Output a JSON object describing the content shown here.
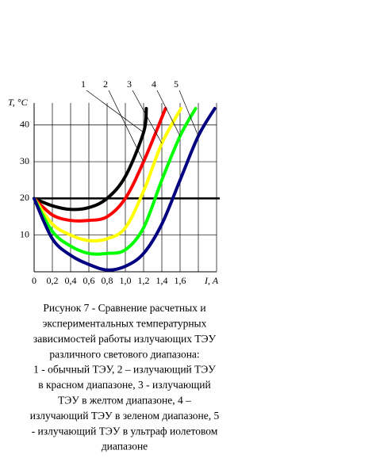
{
  "chart_data": {
    "type": "line",
    "y_label": "T, °C",
    "x_label": "I, A",
    "xlim": [
      0,
      2.0
    ],
    "ylim": [
      0,
      46
    ],
    "xticks": [
      0,
      {
        "value": 0.2,
        "label": "0,2"
      },
      {
        "value": 0.4,
        "label": "0,4"
      },
      {
        "value": 0.6,
        "label": "0,6"
      },
      {
        "value": 0.8,
        "label": "0,8"
      },
      {
        "value": 1.0,
        "label": "1,0"
      },
      {
        "value": 1.2,
        "label": "1,2"
      },
      {
        "value": 1.4,
        "label": "1,4"
      },
      {
        "value": 1.6,
        "label": "1,6"
      }
    ],
    "yticks": [
      10,
      20,
      30,
      40
    ],
    "grid": true,
    "reference_line": 20,
    "series": [
      {
        "name": "1",
        "color": "#000000",
        "x": [
          0,
          0.2,
          0.4,
          0.6,
          0.8,
          1.0,
          1.2,
          1.23
        ],
        "values": [
          20,
          18,
          17,
          17.5,
          20,
          26,
          38,
          44.5
        ]
      },
      {
        "name": "2",
        "color": "#ff0000",
        "x": [
          0,
          0.2,
          0.4,
          0.6,
          0.8,
          1.0,
          1.2,
          1.44
        ],
        "values": [
          20,
          15.5,
          14,
          14,
          15,
          20,
          30,
          44.5
        ]
      },
      {
        "name": "3",
        "color": "#ffff00",
        "x": [
          0,
          0.2,
          0.4,
          0.6,
          0.8,
          1.0,
          1.2,
          1.4,
          1.61
        ],
        "values": [
          20,
          13,
          10,
          8.5,
          9,
          12,
          22,
          35,
          44.5
        ]
      },
      {
        "name": "4",
        "color": "#00ff00",
        "x": [
          0,
          0.2,
          0.4,
          0.6,
          0.8,
          1.0,
          1.2,
          1.4,
          1.6,
          1.77
        ],
        "values": [
          20,
          11,
          7,
          5,
          5,
          6,
          12,
          25,
          37,
          44.5
        ]
      },
      {
        "name": "5",
        "color": "#000080",
        "x": [
          0,
          0.2,
          0.4,
          0.6,
          0.8,
          1.0,
          1.2,
          1.4,
          1.6,
          1.8,
          1.98
        ],
        "values": [
          20,
          9,
          4.5,
          2,
          0.5,
          1.5,
          5,
          13,
          25,
          37,
          44.5
        ]
      }
    ],
    "caption": [
      "Рисунок 7 - Сравнение расчетных и",
      "экспериментальных температурных",
      "зависимостей работы излучающих ТЭУ",
      "различного светового диапазона:",
      "1 - обычный ТЭУ, 2 – излучающий ТЭУ",
      "в красном диапазоне, 3 - излучающий",
      "ТЭУ в желтом диапазоне, 4 –",
      "излучающий ТЭУ в зеленом диапазоне, 5",
      "- излучающий ТЭУ в ультраф иолетовом",
      "диапазоне"
    ]
  }
}
